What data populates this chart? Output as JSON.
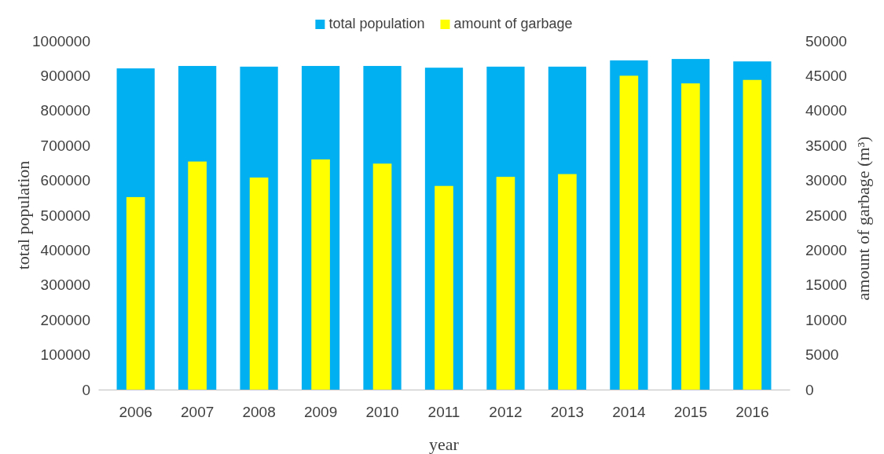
{
  "chart_data": {
    "type": "bar",
    "xlabel": "year",
    "ylabel": "total population",
    "y2label": "amount of garbage (m³)",
    "categories": [
      "2006",
      "2007",
      "2008",
      "2009",
      "2010",
      "2011",
      "2012",
      "2013",
      "2014",
      "2015",
      "2016"
    ],
    "series": [
      {
        "name": "total population",
        "color": "#00b0f0",
        "values": [
          921000,
          928000,
          926000,
          928000,
          928000,
          923000,
          926000,
          926000,
          944000,
          948000,
          941000
        ]
      },
      {
        "name": "amount of garbage",
        "color": "#ffff00",
        "axis": "y2",
        "values": [
          27600,
          32700,
          30400,
          33000,
          32400,
          29200,
          30500,
          30900,
          45000,
          43900,
          44400
        ]
      }
    ],
    "ylim": [
      0,
      1000000
    ],
    "yticks": [
      0,
      100000,
      200000,
      300000,
      400000,
      500000,
      600000,
      700000,
      800000,
      900000,
      1000000
    ],
    "y2lim": [
      0,
      50000
    ],
    "y2ticks": [
      0,
      5000,
      10000,
      15000,
      20000,
      25000,
      30000,
      35000,
      40000,
      45000,
      50000
    ],
    "legend": "top",
    "grid": false
  }
}
